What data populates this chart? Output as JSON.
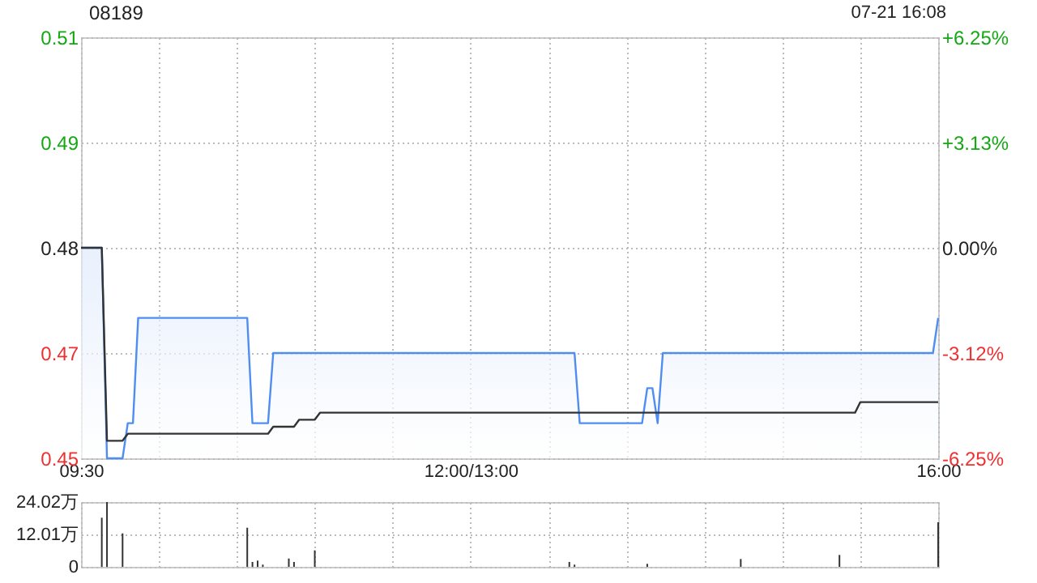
{
  "chart_data": [
    {
      "type": "line",
      "title": "08189",
      "annotations": [
        "07-21 16:08"
      ],
      "categories": [
        "09:30",
        null,
        null,
        null,
        null,
        null,
        null,
        null,
        null,
        null,
        null,
        null,
        null,
        null,
        null,
        null,
        null,
        null,
        null,
        null,
        null,
        null,
        null,
        null,
        null,
        null,
        null,
        null,
        null,
        null,
        null,
        null,
        null,
        null,
        null,
        null,
        null,
        null,
        null,
        null,
        null,
        null,
        null,
        null,
        null,
        null,
        null,
        null,
        null,
        null,
        null,
        null,
        null,
        null,
        null,
        null,
        null,
        null,
        null,
        null,
        null,
        null,
        null,
        null,
        null,
        null,
        null,
        null,
        null,
        null,
        null,
        null,
        null,
        null,
        null,
        "12:00/13:00",
        null,
        null,
        null,
        null,
        null,
        null,
        null,
        null,
        null,
        null,
        null,
        null,
        null,
        null,
        null,
        null,
        null,
        null,
        null,
        null,
        null,
        null,
        null,
        null,
        null,
        null,
        null,
        null,
        null,
        null,
        null,
        null,
        null,
        null,
        null,
        null,
        null,
        null,
        null,
        null,
        null,
        null,
        null,
        null,
        null,
        null,
        null,
        null,
        null,
        null,
        null,
        null,
        null,
        null,
        null,
        null,
        null,
        null,
        null,
        null,
        null,
        null,
        null,
        null,
        null,
        null,
        null,
        null,
        null,
        null,
        null,
        null,
        null,
        null,
        null,
        null,
        null,
        null,
        null,
        null,
        null,
        null,
        null,
        null,
        null,
        null,
        null,
        null,
        null,
        "16:00"
      ],
      "ylim": [
        0.45,
        0.51
      ],
      "yticks": [
        0.45,
        {
          "value": 0.465,
          "label": "0.47"
        },
        0.48,
        {
          "value": 0.495,
          "label": "0.49"
        },
        0.51
      ],
      "y2lim": [
        -6.25,
        6.25
      ],
      "y2ticks": [
        {
          "value": -6.25,
          "label": "-6.25%"
        },
        {
          "value": -3.12,
          "label": "-3.12%"
        },
        {
          "value": 0,
          "label": "0.00%"
        },
        {
          "value": 3.13,
          "label": "+3.13%"
        },
        {
          "value": 6.25,
          "label": "+6.25%"
        }
      ],
      "grid": true,
      "series": [
        {
          "type": "area",
          "color": "#4f8ef0",
          "values": [
            0.48,
            0.48,
            0.48,
            0.48,
            0.48,
            0.45,
            0.45,
            0.45,
            0.45,
            0.455,
            0.455,
            0.47,
            0.47,
            0.47,
            0.47,
            0.47,
            0.47,
            0.47,
            0.47,
            0.47,
            0.47,
            0.47,
            0.47,
            0.47,
            0.47,
            0.47,
            0.47,
            0.47,
            0.47,
            0.47,
            0.47,
            0.47,
            0.47,
            0.455,
            0.455,
            0.455,
            0.455,
            0.465,
            0.465,
            0.465,
            0.465,
            0.465,
            0.465,
            0.465,
            0.465,
            0.465,
            0.465,
            0.465,
            0.465,
            0.465,
            0.465,
            0.465,
            0.465,
            0.465,
            0.465,
            0.465,
            0.465,
            0.465,
            0.465,
            0.465,
            0.465,
            0.465,
            0.465,
            0.465,
            0.465,
            0.465,
            0.465,
            0.465,
            0.465,
            0.465,
            0.465,
            0.465,
            0.465,
            0.465,
            0.465,
            0.465,
            0.465,
            0.465,
            0.465,
            0.465,
            0.465,
            0.465,
            0.465,
            0.465,
            0.465,
            0.465,
            0.465,
            0.465,
            0.465,
            0.465,
            0.465,
            0.465,
            0.465,
            0.465,
            0.465,
            0.465,
            0.455,
            0.455,
            0.455,
            0.455,
            0.455,
            0.455,
            0.455,
            0.455,
            0.455,
            0.455,
            0.455,
            0.455,
            0.455,
            0.46,
            0.46,
            0.455,
            0.465,
            0.465,
            0.465,
            0.465,
            0.465,
            0.465,
            0.465,
            0.465,
            0.465,
            0.465,
            0.465,
            0.465,
            0.465,
            0.465,
            0.465,
            0.465,
            0.465,
            0.465,
            0.465,
            0.465,
            0.465,
            0.465,
            0.465,
            0.465,
            0.465,
            0.465,
            0.465,
            0.465,
            0.465,
            0.465,
            0.465,
            0.465,
            0.465,
            0.465,
            0.465,
            0.465,
            0.465,
            0.465,
            0.465,
            0.465,
            0.465,
            0.465,
            0.465,
            0.465,
            0.465,
            0.465,
            0.465,
            0.465,
            0.465,
            0.465,
            0.465,
            0.465,
            0.465,
            0.47
          ]
        },
        {
          "type": "line",
          "color": "#333333",
          "values": [
            0.48,
            0.48,
            0.48,
            0.48,
            0.48,
            0.4525,
            0.4525,
            0.4525,
            0.4525,
            0.4535,
            0.4535,
            0.4535,
            0.4535,
            0.4535,
            0.4535,
            0.4535,
            0.4535,
            0.4535,
            0.4535,
            0.4535,
            0.4535,
            0.4535,
            0.4535,
            0.4535,
            0.4535,
            0.4535,
            0.4535,
            0.4535,
            0.4535,
            0.4535,
            0.4535,
            0.4535,
            0.4535,
            0.4535,
            0.4535,
            0.4535,
            0.4535,
            0.4545,
            0.4545,
            0.4545,
            0.4545,
            0.4545,
            0.4555,
            0.4555,
            0.4555,
            0.4555,
            0.4565,
            0.4565,
            0.4565,
            0.4565,
            0.4565,
            0.4565,
            0.4565,
            0.4565,
            0.4565,
            0.4565,
            0.4565,
            0.4565,
            0.4565,
            0.4565,
            0.4565,
            0.4565,
            0.4565,
            0.4565,
            0.4565,
            0.4565,
            0.4565,
            0.4565,
            0.4565,
            0.4565,
            0.4565,
            0.4565,
            0.4565,
            0.4565,
            0.4565,
            0.4565,
            0.4565,
            0.4565,
            0.4565,
            0.4565,
            0.4565,
            0.4565,
            0.4565,
            0.4565,
            0.4565,
            0.4565,
            0.4565,
            0.4565,
            0.4565,
            0.4565,
            0.4565,
            0.4565,
            0.4565,
            0.4565,
            0.4565,
            0.4565,
            0.4565,
            0.4565,
            0.4565,
            0.4565,
            0.4565,
            0.4565,
            0.4565,
            0.4565,
            0.4565,
            0.4565,
            0.4565,
            0.4565,
            0.4565,
            0.4565,
            0.4565,
            0.4565,
            0.4565,
            0.4565,
            0.4565,
            0.4565,
            0.4565,
            0.4565,
            0.4565,
            0.4565,
            0.4565,
            0.4565,
            0.4565,
            0.4565,
            0.4565,
            0.4565,
            0.4565,
            0.4565,
            0.4565,
            0.4565,
            0.4565,
            0.4565,
            0.4565,
            0.4565,
            0.4565,
            0.4565,
            0.4565,
            0.4565,
            0.4565,
            0.4565,
            0.4565,
            0.4565,
            0.4565,
            0.4565,
            0.4565,
            0.4565,
            0.4565,
            0.4565,
            0.4565,
            0.4565,
            0.458,
            0.458,
            0.458,
            0.458,
            0.458,
            0.458,
            0.458,
            0.458,
            0.458,
            0.458,
            0.458,
            0.458,
            0.458,
            0.458,
            0.458,
            0.458
          ]
        }
      ]
    },
    {
      "type": "bar",
      "color": "#333333",
      "ylim": [
        0,
        24.02
      ],
      "yticks": [
        0,
        {
          "value": 12.01,
          "label": "12.01万"
        },
        {
          "value": 24.02,
          "label": "24.02万"
        }
      ],
      "grid": true,
      "tick_labels": "y",
      "categories": [
        null,
        null,
        null,
        null,
        null,
        null,
        null,
        null,
        null,
        null,
        null,
        null,
        null,
        null,
        null,
        null,
        null,
        null,
        null,
        null,
        null,
        null,
        null,
        null,
        null,
        null,
        null,
        null,
        null,
        null,
        null,
        null,
        null,
        null,
        null,
        null,
        null,
        null,
        null,
        null,
        null,
        null,
        null,
        null,
        null,
        null,
        null,
        null,
        null,
        null,
        null,
        null,
        null,
        null,
        null,
        null,
        null,
        null,
        null,
        null,
        null,
        null,
        null,
        null,
        null,
        null,
        null,
        null,
        null,
        null,
        null,
        null,
        null,
        null,
        null,
        null,
        null,
        null,
        null,
        null,
        null,
        null,
        null,
        null,
        null,
        null,
        null,
        null,
        null,
        null,
        null,
        null,
        null,
        null,
        null,
        null,
        null,
        null,
        null,
        null,
        null,
        null,
        null,
        null,
        null,
        null,
        null,
        null,
        null,
        null,
        null,
        null,
        null,
        null,
        null,
        null,
        null,
        null,
        null,
        null,
        null,
        null,
        null,
        null,
        null,
        null,
        null,
        null,
        null,
        null,
        null,
        null,
        null,
        null,
        null,
        null,
        null,
        null,
        null,
        null,
        null,
        null,
        null,
        null,
        null,
        null,
        null,
        null,
        null,
        null,
        null,
        null,
        null,
        null,
        null,
        null,
        null,
        null,
        null,
        null,
        null,
        null,
        null,
        null,
        null,
        null
      ],
      "values": [
        0,
        0,
        0,
        0,
        18.2,
        24.02,
        0,
        0,
        12.4,
        0,
        0,
        0,
        0,
        0,
        0,
        0,
        0,
        0,
        0,
        0,
        0,
        0,
        0,
        0,
        0,
        0,
        0,
        0,
        0,
        0,
        0,
        0,
        14.5,
        1.8,
        2.3,
        0.8,
        0,
        0,
        0,
        0,
        3.1,
        1.8,
        0,
        0,
        0,
        6.1,
        0,
        0,
        0,
        0,
        0,
        0,
        0,
        0,
        0,
        0,
        0,
        0,
        0,
        0,
        0,
        0,
        0,
        0,
        0,
        0,
        0,
        0,
        0,
        0,
        0,
        0,
        0,
        0,
        0,
        0,
        0,
        0,
        null,
        0,
        0,
        0,
        0,
        0,
        0,
        0,
        0,
        0,
        0,
        0,
        0,
        0,
        0,
        0,
        1.8,
        0.8,
        0,
        0,
        0,
        0,
        0,
        0,
        0,
        0,
        0,
        0,
        null,
        0,
        0,
        1.1,
        0,
        0,
        0,
        0,
        0,
        0,
        0,
        0,
        0,
        0,
        0,
        0,
        0,
        0,
        0,
        0,
        0,
        2.9,
        0,
        0,
        0,
        0,
        0,
        0,
        0,
        0,
        0,
        0,
        0,
        0,
        0,
        0,
        0,
        0,
        0,
        0,
        4.4,
        0,
        0,
        0,
        0,
        0,
        0,
        0,
        0,
        0,
        0,
        0,
        0,
        0,
        0,
        0,
        0,
        0,
        0,
        16.5
      ]
    }
  ]
}
